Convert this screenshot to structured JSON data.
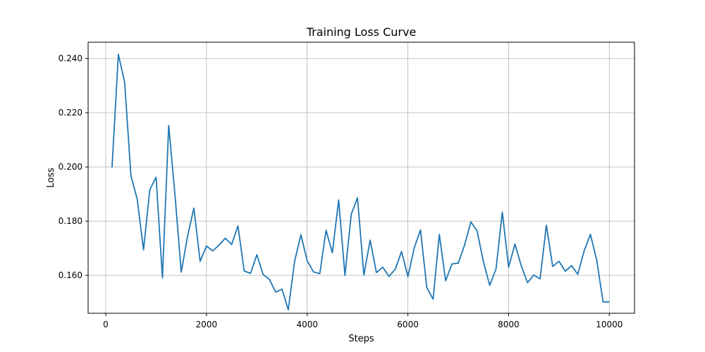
{
  "chart_data": {
    "type": "line",
    "title": "Training Loss Curve",
    "xlabel": "Steps",
    "ylabel": "Loss",
    "xlim": [
      -350,
      10500
    ],
    "ylim": [
      0.146,
      0.246
    ],
    "xticks": [
      0,
      2000,
      4000,
      6000,
      8000,
      10000
    ],
    "yticks": [
      0.16,
      0.18,
      0.2,
      0.22,
      0.24
    ],
    "xtick_labels": [
      "0",
      "2000",
      "4000",
      "6000",
      "8000",
      "10000"
    ],
    "ytick_labels": [
      "0.160",
      "0.180",
      "0.200",
      "0.220",
      "0.240"
    ],
    "grid": true,
    "series_color": "#1f77b4",
    "series": [
      {
        "x": [
          125,
          250,
          375,
          500,
          625,
          750,
          875,
          1000,
          1125,
          1250,
          1375,
          1500,
          1625,
          1750,
          1875,
          2000,
          2125,
          2250,
          2375,
          2500,
          2625,
          2750,
          2875,
          3000,
          3125,
          3250,
          3375,
          3500,
          3625,
          3750,
          3875,
          4000,
          4125,
          4250,
          4375,
          4500,
          4625,
          4750,
          4875,
          5000,
          5125,
          5250,
          5375,
          5500,
          5625,
          5750,
          5875,
          6000,
          6125,
          6250,
          6375,
          6500,
          6625,
          6750,
          6875,
          7000,
          7125,
          7250,
          7375,
          7500,
          7625,
          7750,
          7875,
          8000,
          8125,
          8250,
          8375,
          8500,
          8625,
          8750,
          8875,
          9000,
          9125,
          9250,
          9375,
          9500,
          9625,
          9750,
          9875,
          10000,
          10000
        ],
        "values": [
          0.1998,
          0.2415,
          0.2313,
          0.1968,
          0.1881,
          0.1694,
          0.1916,
          0.1962,
          0.1591,
          0.2153,
          0.1897,
          0.1612,
          0.1745,
          0.1848,
          0.1652,
          0.1708,
          0.169,
          0.1712,
          0.1737,
          0.1714,
          0.1782,
          0.1616,
          0.1607,
          0.1676,
          0.1603,
          0.1585,
          0.1538,
          0.1549,
          0.1473,
          0.1652,
          0.175,
          0.1654,
          0.1613,
          0.1606,
          0.1766,
          0.1683,
          0.1878,
          0.16,
          0.1825,
          0.1886,
          0.1601,
          0.173,
          0.161,
          0.163,
          0.1596,
          0.1623,
          0.1688,
          0.1595,
          0.17,
          0.1768,
          0.1555,
          0.1512,
          0.1751,
          0.158,
          0.1642,
          0.1645,
          0.1711,
          0.1797,
          0.1763,
          0.165,
          0.1563,
          0.1624,
          0.1833,
          0.163,
          0.1715,
          0.1636,
          0.1573,
          0.1601,
          0.1587,
          0.1785,
          0.1633,
          0.1652,
          0.1615,
          0.1636,
          0.1604,
          0.1691,
          0.1751,
          0.1656,
          0.1502,
          0.1502,
          0.1502
        ]
      }
    ]
  }
}
